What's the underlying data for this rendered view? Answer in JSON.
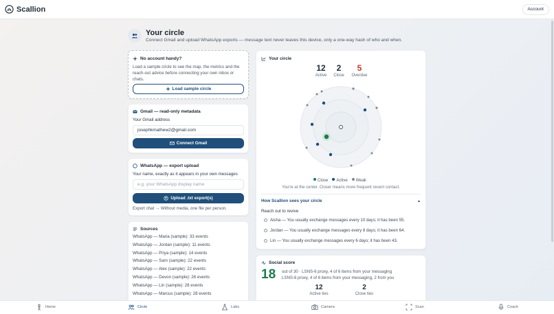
{
  "app": {
    "name": "Scallion",
    "account_label": "Account"
  },
  "header": {
    "icon": "people-icon",
    "title": "Your circle",
    "subtitle": "Connect Gmail and upload WhatsApp exports — message text never leaves this device, only a one-way hash of who and when."
  },
  "sample_card": {
    "title": "No account handy?",
    "body": "Load a sample circle to see the map, the metrics and the reach-out advice before connecting your own inbox or chats.",
    "button_label": "Load sample circle"
  },
  "gmail_card": {
    "title": "Gmail — read-only metadata",
    "address_label": "Your Gmail address",
    "address_value": "josephkmathew2@gmail.com",
    "button_label": "Connect Gmail"
  },
  "whatsapp_card": {
    "title": "WhatsApp — export upload",
    "name_label": "Your name, exactly as it appears in your own messages",
    "name_placeholder": "e.g. your WhatsApp display name",
    "button_label": "Upload .txt export(s)",
    "hint": "Export chat → Without media, one file per person."
  },
  "sources_card": {
    "title": "Sources",
    "items": [
      "WhatsApp — Maria (sample): 33 events",
      "WhatsApp — Jordan (sample): 11 events",
      "WhatsApp — Priya (sample): 14 events",
      "WhatsApp — Sam (sample): 22 events",
      "WhatsApp — Alex (sample): 22 events",
      "WhatsApp — Devon (sample): 26 events",
      "WhatsApp — Lin (sample): 28 events",
      "WhatsApp — Marcus (sample): 28 events"
    ]
  },
  "circle_card": {
    "title": "Your circle",
    "stats": [
      {
        "value": "12",
        "label": "Active"
      },
      {
        "value": "2",
        "label": "Close"
      },
      {
        "value": "5",
        "label": "Overdue"
      }
    ],
    "legend": [
      "Close",
      "Active",
      "Weak"
    ],
    "center_note": "You're at the center. Closer means more frequent recent contact.",
    "colors": {
      "close": "#1e7a4f",
      "active": "#1f4d78",
      "weak": "#7d8894"
    },
    "how_title": "How Scallion sees your circle",
    "how_caret": "▴",
    "revive_title": "Reach out to revive",
    "revive_items": [
      "Aisha — You usually exchange messages every 10 days; it has been 55.",
      "Jordan — You usually exchange messages every 8 days; it has been 64.",
      "Lin — You usually exchange messages every 6 days; it has been 43."
    ]
  },
  "score_card": {
    "title": "Social score",
    "score": "18",
    "line1": "out of 30 · LSNS-6 proxy, 4 of 6 items from your messaging",
    "line2": "LSNS-6 proxy, 4 of 6 items from your messaging, 2 from you",
    "stats": [
      {
        "value": "12",
        "label": "Active ties"
      },
      {
        "value": "2",
        "label": "Close ties"
      }
    ]
  },
  "nav": {
    "items": [
      {
        "label": "Home",
        "icon": "home-icon"
      },
      {
        "label": "Circle",
        "icon": "people-icon"
      },
      {
        "label": "Labs",
        "icon": "flask-icon"
      },
      {
        "label": "Camera",
        "icon": "camera-icon"
      },
      {
        "label": "Scan",
        "icon": "scan-icon"
      },
      {
        "label": "Coach",
        "icon": "coach-icon"
      }
    ],
    "active": "Circle"
  }
}
